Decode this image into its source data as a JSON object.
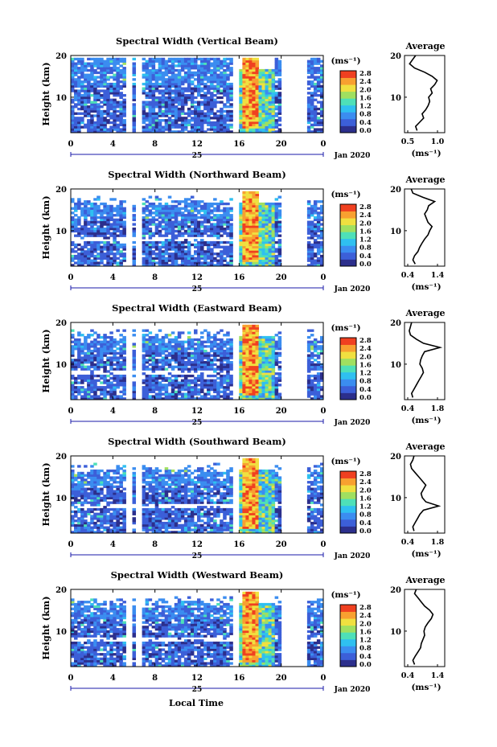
{
  "figure": {
    "date_label": "Jan 2020",
    "day_label": "25",
    "xlabel": "Local Time",
    "colorbar_unit": "(ms⁻¹)",
    "colorbar_ticks": [
      "0.0",
      "0.4",
      "0.8",
      "1.2",
      "1.6",
      "2.0",
      "2.4",
      "2.8"
    ],
    "colorscale": [
      "#2c2f8c",
      "#3c5fd8",
      "#3b8df0",
      "#2fc0f0",
      "#4ee0b8",
      "#a0e060",
      "#f0e040",
      "#f8a030",
      "#f04020"
    ]
  },
  "chart_data": [
    {
      "type": "heatmap",
      "title": "Spectral Width (Vertical Beam)",
      "xlabel": "",
      "ylabel": "Height (km)",
      "x_ticks": [
        "0",
        "4",
        "8",
        "12",
        "16",
        "20",
        "0"
      ],
      "xlim": [
        0,
        24
      ],
      "y_ticks": [
        "10",
        "20"
      ],
      "ylim": [
        1.5,
        20
      ],
      "colorbar": {
        "label": "(ms⁻¹)",
        "range": [
          0.0,
          2.8
        ]
      },
      "gaps_hours": [
        [
          5.3,
          5.8
        ],
        [
          6.3,
          6.9
        ],
        [
          15.5,
          15.9
        ],
        [
          20.1,
          22.6
        ]
      ],
      "convective_window_hours": [
        16.0,
        19.5
      ],
      "average_panel": {
        "title": "Average",
        "xlabel": "(ms⁻¹)",
        "xlim": [
          0.5,
          1.3
        ],
        "x_ticks": [
          "0.5",
          "1.0"
        ],
        "y_ticks": [
          "10",
          "20"
        ],
        "ylim": [
          1.5,
          20
        ],
        "profile": [
          {
            "h": 2,
            "v": 0.75
          },
          {
            "h": 3,
            "v": 0.72
          },
          {
            "h": 4,
            "v": 0.8
          },
          {
            "h": 5,
            "v": 0.88
          },
          {
            "h": 6,
            "v": 0.85
          },
          {
            "h": 7,
            "v": 0.92
          },
          {
            "h": 8,
            "v": 0.97
          },
          {
            "h": 9,
            "v": 1.0
          },
          {
            "h": 10,
            "v": 0.98
          },
          {
            "h": 11,
            "v": 1.05
          },
          {
            "h": 12,
            "v": 1.02
          },
          {
            "h": 13,
            "v": 1.1
          },
          {
            "h": 14,
            "v": 1.15
          },
          {
            "h": 15,
            "v": 1.05
          },
          {
            "h": 16,
            "v": 0.9
          },
          {
            "h": 17,
            "v": 0.7
          },
          {
            "h": 18,
            "v": 0.6
          },
          {
            "h": 19,
            "v": 0.66
          },
          {
            "h": 20,
            "v": 0.72
          }
        ]
      }
    },
    {
      "type": "heatmap",
      "title": "Spectral Width (Northward Beam)",
      "xlabel": "",
      "ylabel": "Height (km)",
      "x_ticks": [
        "0",
        "4",
        "8",
        "12",
        "16",
        "20",
        "0"
      ],
      "xlim": [
        0,
        24
      ],
      "y_ticks": [
        "10",
        "20"
      ],
      "ylim": [
        1.5,
        20
      ],
      "colorbar": {
        "label": "(ms⁻¹)",
        "range": [
          0.0,
          2.8
        ]
      },
      "gaps_hours": [
        [
          5.3,
          5.8
        ],
        [
          6.3,
          6.9
        ],
        [
          15.5,
          15.9
        ],
        [
          20.1,
          22.6
        ]
      ],
      "convective_window_hours": [
        16.0,
        19.5
      ],
      "average_panel": {
        "title": "Average",
        "xlabel": "(ms⁻¹)",
        "xlim": [
          0.3,
          1.5
        ],
        "x_ticks": [
          "0.4",
          "1.4"
        ],
        "y_ticks": [
          "10",
          "20"
        ],
        "ylim": [
          1.5,
          20
        ],
        "profile": [
          {
            "h": 2,
            "v": 0.62
          },
          {
            "h": 3,
            "v": 0.55
          },
          {
            "h": 4,
            "v": 0.6
          },
          {
            "h": 5,
            "v": 0.7
          },
          {
            "h": 6,
            "v": 0.75
          },
          {
            "h": 7,
            "v": 0.82
          },
          {
            "h": 8,
            "v": 0.9
          },
          {
            "h": 9,
            "v": 1.0
          },
          {
            "h": 10,
            "v": 1.05
          },
          {
            "h": 11,
            "v": 1.12
          },
          {
            "h": 12,
            "v": 1.0
          },
          {
            "h": 13,
            "v": 0.95
          },
          {
            "h": 14,
            "v": 0.9
          },
          {
            "h": 15,
            "v": 0.98
          },
          {
            "h": 16,
            "v": 1.02
          },
          {
            "h": 17,
            "v": 1.2
          },
          {
            "h": 18,
            "v": 0.85
          },
          {
            "h": 19,
            "v": 0.55
          },
          {
            "h": 20,
            "v": 0.5
          }
        ]
      }
    },
    {
      "type": "heatmap",
      "title": "Spectral Width (Eastward Beam)",
      "xlabel": "",
      "ylabel": "Height (km)",
      "x_ticks": [
        "0",
        "4",
        "8",
        "12",
        "16",
        "20",
        "0"
      ],
      "xlim": [
        0,
        24
      ],
      "y_ticks": [
        "10",
        "20"
      ],
      "ylim": [
        1.5,
        20
      ],
      "colorbar": {
        "label": "(ms⁻¹)",
        "range": [
          0.0,
          2.8
        ]
      },
      "gaps_hours": [
        [
          5.3,
          5.8
        ],
        [
          6.3,
          6.9
        ],
        [
          15.5,
          15.9
        ],
        [
          20.1,
          22.6
        ]
      ],
      "convective_window_hours": [
        16.0,
        19.5
      ],
      "average_panel": {
        "title": "Average",
        "xlabel": "(ms⁻¹)",
        "xlim": [
          0.3,
          2.0
        ],
        "x_ticks": [
          "0.4",
          "1.8"
        ],
        "y_ticks": [
          "10",
          "20"
        ],
        "ylim": [
          1.5,
          20
        ],
        "profile": [
          {
            "h": 2,
            "v": 0.65
          },
          {
            "h": 3,
            "v": 0.6
          },
          {
            "h": 4,
            "v": 0.7
          },
          {
            "h": 5,
            "v": 0.8
          },
          {
            "h": 6,
            "v": 0.9
          },
          {
            "h": 7,
            "v": 1.0
          },
          {
            "h": 8,
            "v": 1.1
          },
          {
            "h": 9,
            "v": 1.05
          },
          {
            "h": 10,
            "v": 0.95
          },
          {
            "h": 11,
            "v": 0.98
          },
          {
            "h": 12,
            "v": 1.05
          },
          {
            "h": 13,
            "v": 1.15
          },
          {
            "h": 14,
            "v": 1.8
          },
          {
            "h": 15,
            "v": 1.1
          },
          {
            "h": 16,
            "v": 0.8
          },
          {
            "h": 17,
            "v": 0.55
          },
          {
            "h": 18,
            "v": 0.5
          },
          {
            "h": 19,
            "v": 0.55
          },
          {
            "h": 20,
            "v": 0.6
          }
        ]
      }
    },
    {
      "type": "heatmap",
      "title": "Spectral Width (Southward Beam)",
      "xlabel": "",
      "ylabel": "Height (km)",
      "x_ticks": [
        "0",
        "4",
        "8",
        "12",
        "16",
        "20",
        "0"
      ],
      "xlim": [
        0,
        24
      ],
      "y_ticks": [
        "10",
        "20"
      ],
      "ylim": [
        1.5,
        20
      ],
      "colorbar": {
        "label": "(ms⁻¹)",
        "range": [
          0.0,
          2.8
        ]
      },
      "gaps_hours": [
        [
          5.3,
          5.8
        ],
        [
          6.3,
          6.9
        ],
        [
          15.5,
          15.9
        ],
        [
          20.1,
          22.6
        ]
      ],
      "convective_window_hours": [
        16.0,
        19.5
      ],
      "average_panel": {
        "title": "Average",
        "xlabel": "(ms⁻¹)",
        "xlim": [
          0.3,
          2.0
        ],
        "x_ticks": [
          "0.4",
          "1.8"
        ],
        "y_ticks": [
          "10",
          "20"
        ],
        "ylim": [
          1.5,
          20
        ],
        "profile": [
          {
            "h": 2,
            "v": 0.7
          },
          {
            "h": 3,
            "v": 0.65
          },
          {
            "h": 4,
            "v": 0.75
          },
          {
            "h": 5,
            "v": 0.85
          },
          {
            "h": 6,
            "v": 0.95
          },
          {
            "h": 7,
            "v": 1.1
          },
          {
            "h": 8,
            "v": 1.75
          },
          {
            "h": 9,
            "v": 1.2
          },
          {
            "h": 10,
            "v": 1.05
          },
          {
            "h": 11,
            "v": 1.0
          },
          {
            "h": 12,
            "v": 1.1
          },
          {
            "h": 13,
            "v": 1.2
          },
          {
            "h": 14,
            "v": 1.05
          },
          {
            "h": 15,
            "v": 0.9
          },
          {
            "h": 16,
            "v": 0.75
          },
          {
            "h": 17,
            "v": 0.6
          },
          {
            "h": 18,
            "v": 0.55
          },
          {
            "h": 19,
            "v": 0.65
          },
          {
            "h": 20,
            "v": 0.7
          }
        ]
      }
    },
    {
      "type": "heatmap",
      "title": "Spectral Width (Westward Beam)",
      "xlabel": "Local Time",
      "ylabel": "Height (km)",
      "x_ticks": [
        "0",
        "4",
        "8",
        "12",
        "16",
        "20",
        "0"
      ],
      "xlim": [
        0,
        24
      ],
      "y_ticks": [
        "10",
        "20"
      ],
      "ylim": [
        1.5,
        20
      ],
      "colorbar": {
        "label": "(ms⁻¹)",
        "range": [
          0.0,
          2.8
        ]
      },
      "gaps_hours": [
        [
          5.3,
          5.8
        ],
        [
          6.3,
          6.9
        ],
        [
          15.5,
          15.9
        ],
        [
          20.1,
          22.6
        ]
      ],
      "convective_window_hours": [
        16.0,
        19.5
      ],
      "average_panel": {
        "title": "Average",
        "xlabel": "(ms⁻¹)",
        "xlim": [
          0.3,
          1.5
        ],
        "x_ticks": [
          "0.4",
          "1.4"
        ],
        "y_ticks": [
          "10",
          "20"
        ],
        "ylim": [
          1.5,
          20
        ],
        "profile": [
          {
            "h": 2,
            "v": 0.6
          },
          {
            "h": 3,
            "v": 0.55
          },
          {
            "h": 4,
            "v": 0.62
          },
          {
            "h": 5,
            "v": 0.7
          },
          {
            "h": 6,
            "v": 0.78
          },
          {
            "h": 7,
            "v": 0.8
          },
          {
            "h": 8,
            "v": 0.85
          },
          {
            "h": 9,
            "v": 0.9
          },
          {
            "h": 10,
            "v": 0.88
          },
          {
            "h": 11,
            "v": 0.92
          },
          {
            "h": 12,
            "v": 1.0
          },
          {
            "h": 13,
            "v": 1.1
          },
          {
            "h": 14,
            "v": 1.15
          },
          {
            "h": 15,
            "v": 1.05
          },
          {
            "h": 16,
            "v": 0.9
          },
          {
            "h": 17,
            "v": 0.8
          },
          {
            "h": 18,
            "v": 0.7
          },
          {
            "h": 19,
            "v": 0.6
          },
          {
            "h": 20,
            "v": 0.65
          }
        ]
      }
    }
  ]
}
